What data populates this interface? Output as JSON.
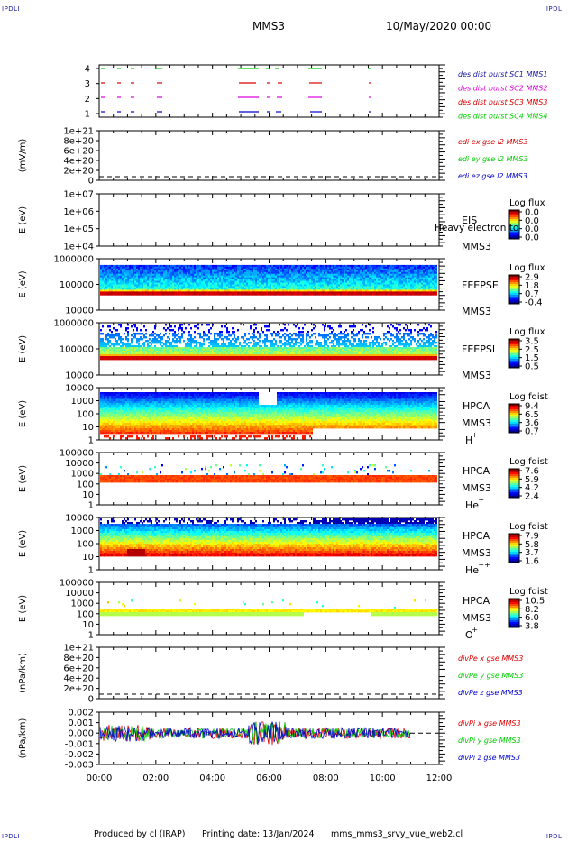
{
  "corner_labels": {
    "tl": "IPDLI",
    "tr": "IPDLI",
    "bl": "IPDLI",
    "br": "IPDLI"
  },
  "header": {
    "spacecraft": "MMS3",
    "date": "10/May/2020 00:00"
  },
  "footer": {
    "produced": "Produced by cl (IRAP)",
    "printing": "Printing date: 13/Jan/2024",
    "file": "mms_mms3_srvy_vue_web2.cl"
  },
  "colors": {
    "red": "#dd0000",
    "green": "#00cc00",
    "blue": "#0000cc",
    "magenta": "#dd00dd",
    "text_blue": "#1a1aa0"
  },
  "chart_data": [
    {
      "id": "burst",
      "type": "scatter",
      "yticks": [
        "4",
        "3",
        "2",
        "1"
      ],
      "legend": [
        {
          "label": "des dist burst SC1 MMS1",
          "color": "#1a1aa0"
        },
        {
          "label": "des dist burst SC2 MMS2",
          "color": "#dd00dd"
        },
        {
          "label": "des dist burst SC3 MMS3",
          "color": "#dd0000"
        },
        {
          "label": "des dist burst SC4 MMS4",
          "color": "#00cc00"
        }
      ]
    },
    {
      "id": "edi",
      "type": "line",
      "ylabel": "(mV/m)",
      "yticks": [
        "1e+21",
        "8e+20",
        "6e+20",
        "4e+20",
        "2e+20",
        "0"
      ],
      "legend": [
        {
          "label": "edi ex gse l2 MMS3",
          "color": "#dd0000"
        },
        {
          "label": "edi ey gse l2 MMS3",
          "color": "#00cc00"
        },
        {
          "label": "edi ez gse l2 MMS3",
          "color": "#0000cc"
        }
      ]
    },
    {
      "id": "eis",
      "type": "heatmap",
      "ylabel": "E (eV)",
      "yticks": [
        "1e+07",
        "1e+06",
        "1e+05",
        "1e+04"
      ],
      "instrument": [
        "EIS",
        "MMS3"
      ],
      "overlay_text": "Heavy electron to",
      "colorbar_title": "Log flux",
      "colorbar_ticks": [
        "0.0",
        "0.0",
        "0.0",
        "0.0"
      ]
    },
    {
      "id": "feepse",
      "type": "heatmap",
      "ylabel": "E (eV)",
      "yticks": [
        "1000000",
        "100000",
        "10000"
      ],
      "instrument": [
        "FEEPSE",
        "MMS3"
      ],
      "colorbar_title": "Log flux",
      "colorbar_ticks": [
        "2.9",
        "1.8",
        "0.7",
        "-0.4"
      ]
    },
    {
      "id": "feepsi",
      "type": "heatmap",
      "ylabel": "E (eV)",
      "yticks": [
        "1000000",
        "100000",
        "10000"
      ],
      "instrument": [
        "FEEPSI",
        "MMS3"
      ],
      "colorbar_title": "Log flux",
      "colorbar_ticks": [
        "3.5",
        "2.5",
        "1.5",
        "0.5"
      ]
    },
    {
      "id": "hpca_h",
      "type": "heatmap",
      "ylabel": "E (eV)",
      "yticks": [
        "10000",
        "1000",
        "100",
        "10",
        "1"
      ],
      "instrument": [
        "HPCA",
        "MMS3"
      ],
      "species": "H",
      "charge": "+",
      "colorbar_title": "Log fdist",
      "colorbar_ticks": [
        "9.4",
        "6.5",
        "3.6",
        "0.7"
      ]
    },
    {
      "id": "hpca_he",
      "type": "heatmap",
      "ylabel": "E (eV)",
      "yticks": [
        "100000",
        "10000",
        "1000",
        "100",
        "10",
        "1"
      ],
      "instrument": [
        "HPCA",
        "MMS3"
      ],
      "species": "He",
      "charge": "+",
      "colorbar_title": "Log fdist",
      "colorbar_ticks": [
        "7.6",
        "5.9",
        "4.2",
        "2.4"
      ]
    },
    {
      "id": "hpca_hepp",
      "type": "heatmap",
      "ylabel": "E (eV)",
      "yticks": [
        "10000",
        "1000",
        "100",
        "10",
        "1"
      ],
      "instrument": [
        "HPCA",
        "MMS3"
      ],
      "species": "He",
      "charge": "++",
      "colorbar_title": "Log fdist",
      "colorbar_ticks": [
        "7.9",
        "5.8",
        "3.7",
        "1.6"
      ]
    },
    {
      "id": "hpca_o",
      "type": "heatmap",
      "ylabel": "E (eV)",
      "yticks": [
        "100000",
        "10000",
        "1000",
        "100",
        "10",
        "1"
      ],
      "instrument": [
        "HPCA",
        "MMS3"
      ],
      "species": "O",
      "charge": "+",
      "colorbar_title": "Log fdist",
      "colorbar_ticks": [
        "10.5",
        "8.2",
        "6.0",
        "3.8"
      ]
    },
    {
      "id": "divpe",
      "type": "line",
      "ylabel": "(nPa/km)",
      "yticks": [
        "1e+21",
        "8e+20",
        "6e+20",
        "4e+20",
        "2e+20",
        "0"
      ],
      "legend": [
        {
          "label": "divPe x gse MMS3",
          "color": "#dd0000"
        },
        {
          "label": "divPe y gse MMS3",
          "color": "#00cc00"
        },
        {
          "label": "divPe z gse MMS3",
          "color": "#0000cc"
        }
      ]
    },
    {
      "id": "divpi",
      "type": "line",
      "ylabel": "(nPa/km)",
      "yticks": [
        "0.002",
        "0.001",
        "0.000",
        "-0.001",
        "-0.002",
        "-0.003"
      ],
      "legend": [
        {
          "label": "divPi x gse MMS3",
          "color": "#dd0000"
        },
        {
          "label": "divPi y gse MMS3",
          "color": "#00cc00"
        },
        {
          "label": "divPi z gse MMS3",
          "color": "#0000cc"
        }
      ]
    }
  ],
  "xaxis": {
    "ticks": [
      "00:00",
      "02:00",
      "04:00",
      "06:00",
      "08:00",
      "10:00",
      "12:00"
    ]
  }
}
